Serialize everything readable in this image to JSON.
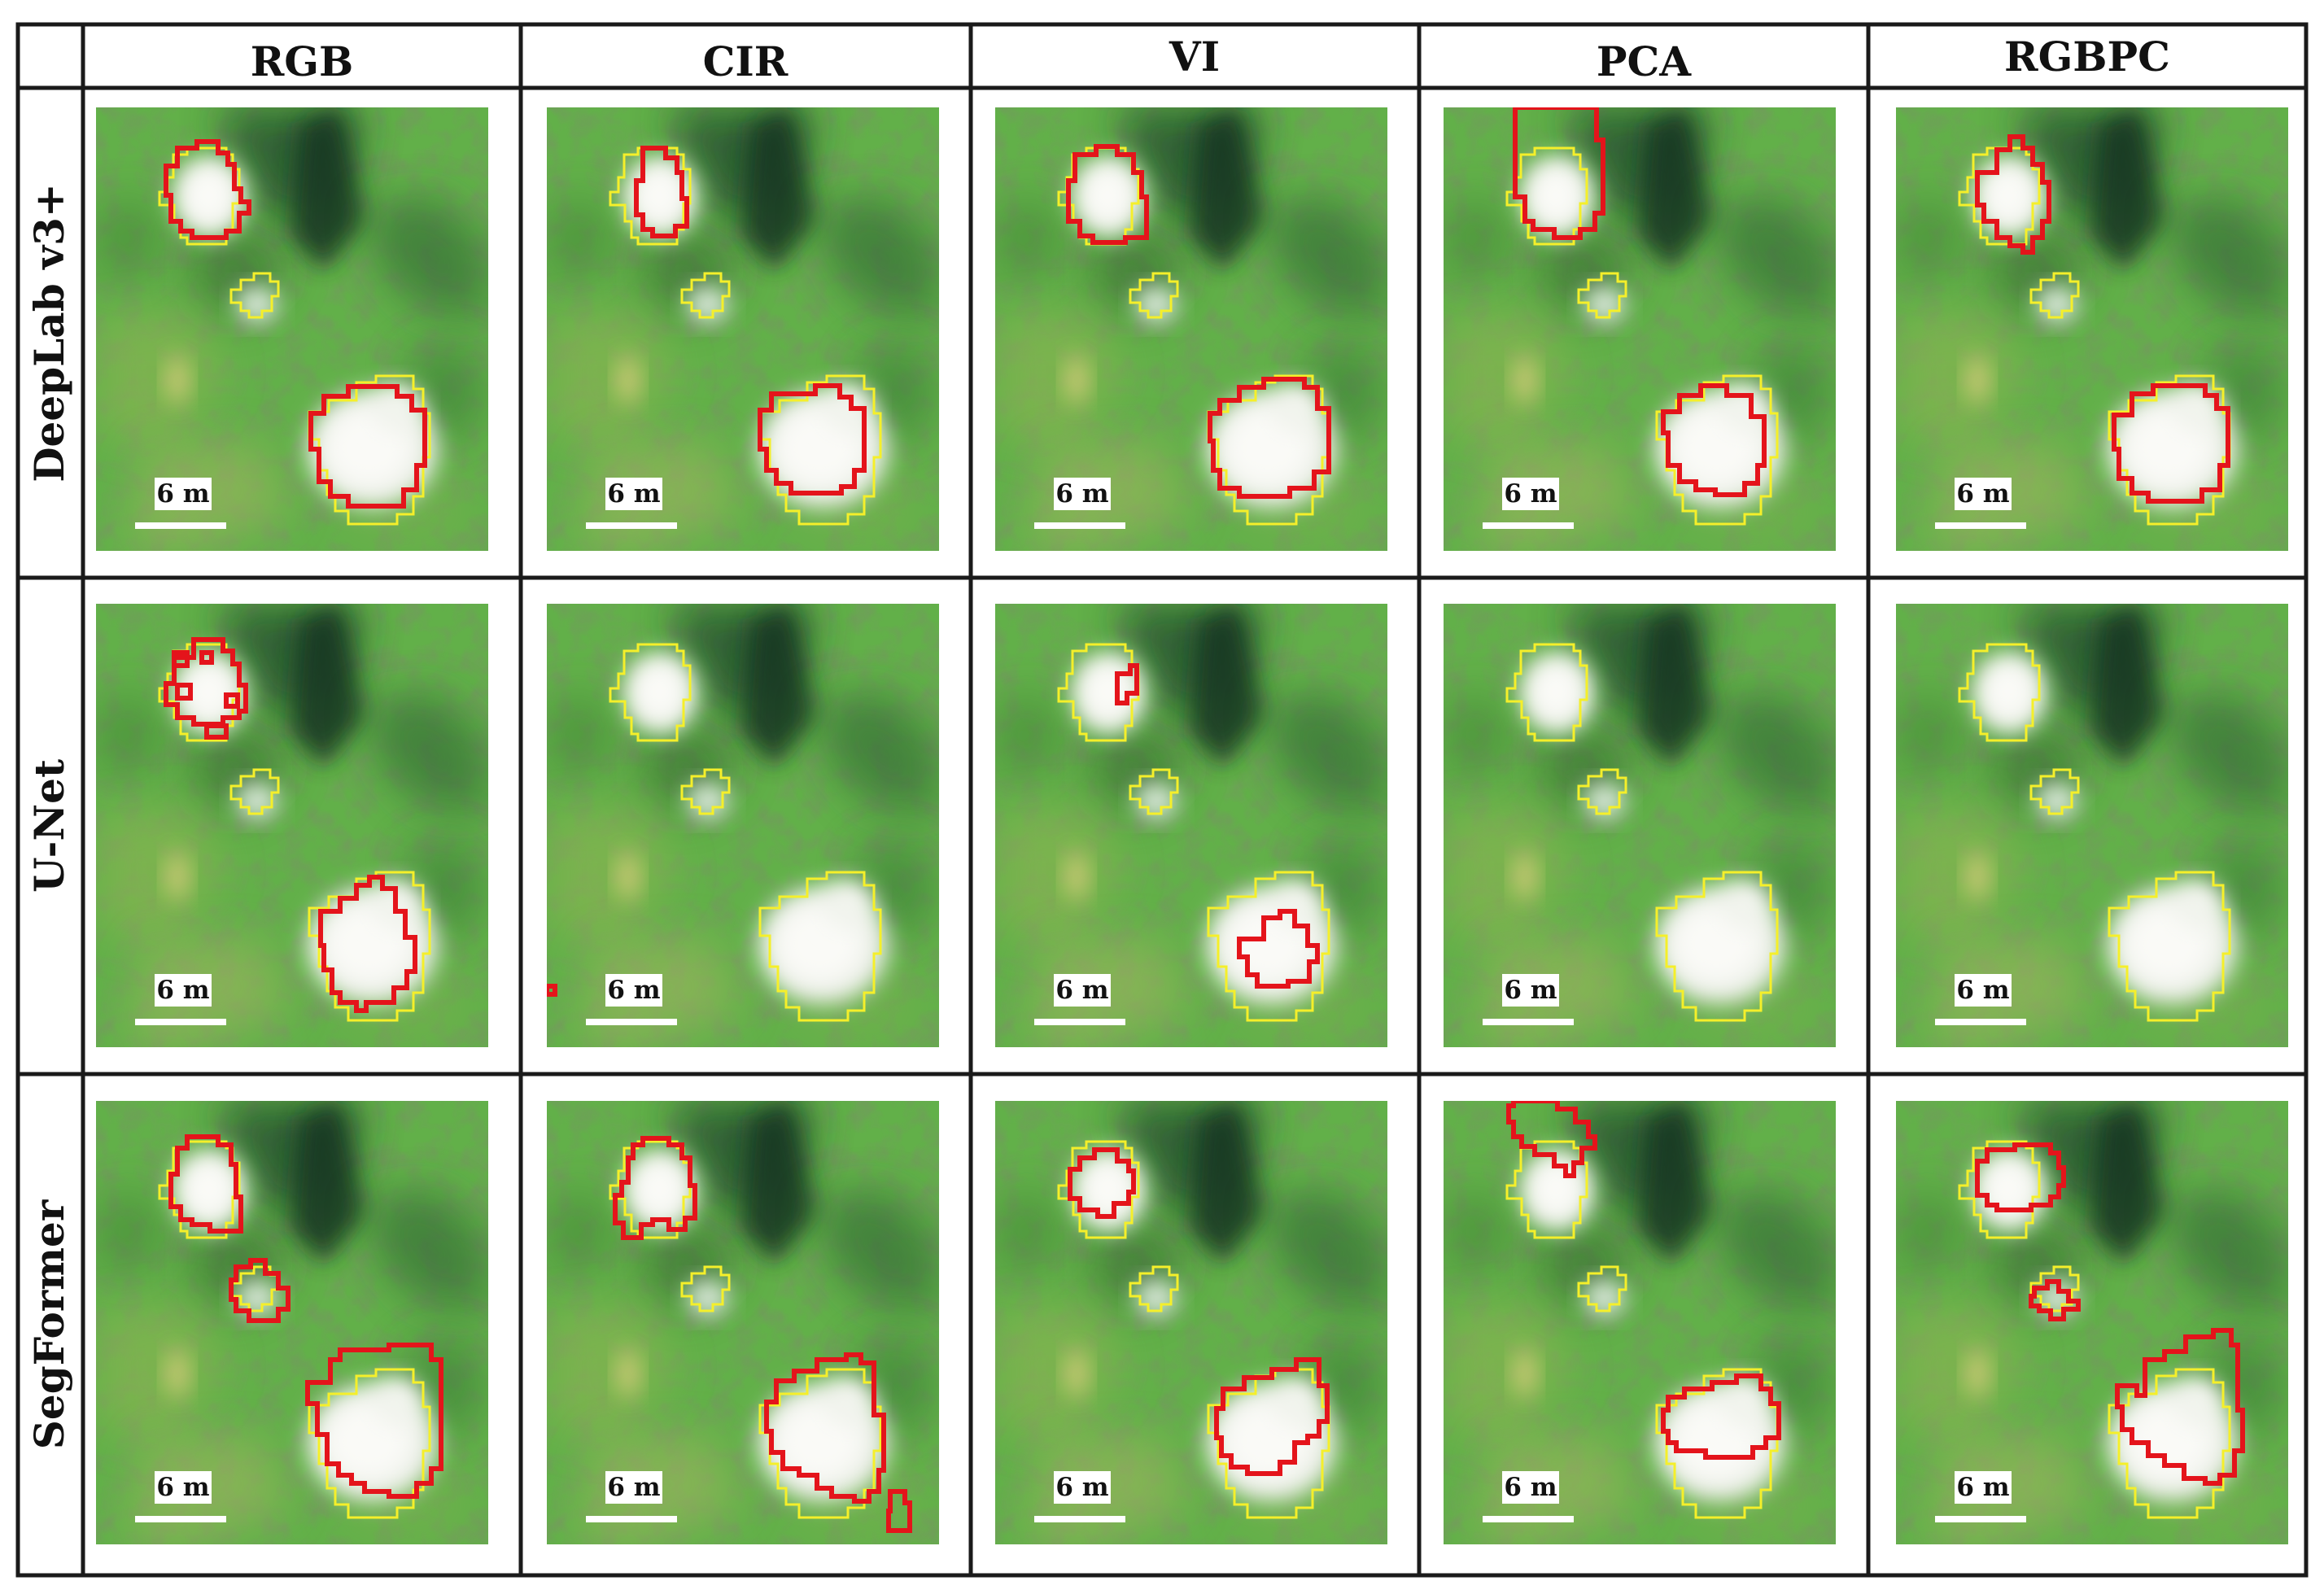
{
  "columns": [
    {
      "label": "RGB"
    },
    {
      "label": "CIR"
    },
    {
      "label": "VI"
    },
    {
      "label": "PCA"
    },
    {
      "label": "RGBPC"
    }
  ],
  "rows": [
    {
      "label": "DeepLab v3+"
    },
    {
      "label": "U-Net"
    },
    {
      "label": "SegFormer"
    }
  ],
  "scale_bar": {
    "label": "6 m"
  },
  "colors": {
    "ground_truth_outline": "#f5ef2a",
    "prediction_outline": "#e4141b",
    "grid_line": "#1a1a1a",
    "foliage_base": "#5fae45",
    "canopy_white": "#eef1ea"
  }
}
